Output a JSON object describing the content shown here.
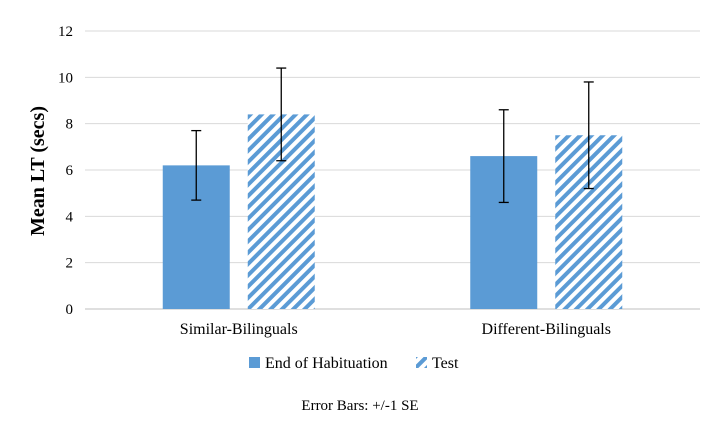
{
  "chart_data": {
    "type": "bar",
    "title": "",
    "xlabel": "",
    "ylabel": "Mean LT (secs)",
    "ylim": [
      0,
      12
    ],
    "yticks": [
      0,
      2,
      4,
      6,
      8,
      10,
      12
    ],
    "grid": true,
    "legend_position": "bottom",
    "categories": [
      "Similar-Bilinguals",
      "Different-Bilinguals"
    ],
    "series": [
      {
        "name": "End of Habituation",
        "values": [
          6.2,
          6.6
        ],
        "error": [
          1.5,
          2.0
        ],
        "color": "#5b9bd5",
        "pattern": "solid"
      },
      {
        "name": "Test",
        "values": [
          8.4,
          7.5
        ],
        "error": [
          2.0,
          2.3
        ],
        "color": "#5b9bd5",
        "pattern": "diagonal-stripes"
      }
    ],
    "note": "Error Bars: +/-1 SE"
  }
}
